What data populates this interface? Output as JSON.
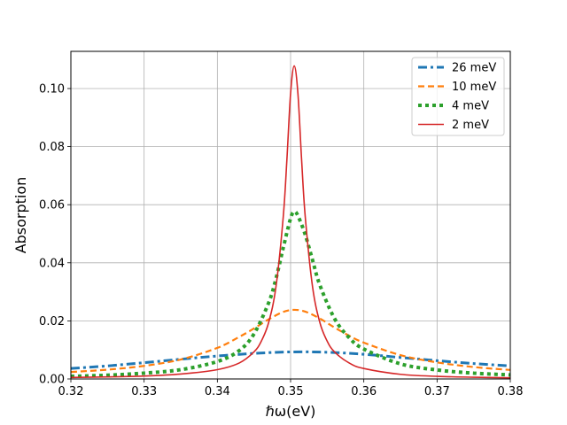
{
  "chart_data": {
    "type": "line",
    "xlabel": "ℏω(eV)",
    "ylabel": "Absorption",
    "xlim": [
      0.32,
      0.38
    ],
    "ylim": [
      0.0,
      0.1128
    ],
    "x_ticks": [
      "0.32",
      "0.33",
      "0.34",
      "0.35",
      "0.36",
      "0.37",
      "0.38"
    ],
    "y_ticks": [
      "0.00",
      "0.02",
      "0.04",
      "0.06",
      "0.08",
      "0.10"
    ],
    "grid": true,
    "legend_position": "top-right",
    "series": [
      {
        "name": "26 meV",
        "color": "#1f77b4",
        "style": "dash-dot",
        "x": [
          0.32,
          0.325,
          0.33,
          0.335,
          0.34,
          0.345,
          0.35,
          0.355,
          0.36,
          0.365,
          0.37,
          0.375,
          0.38
        ],
        "y": [
          0.0036,
          0.0045,
          0.0056,
          0.0068,
          0.0079,
          0.0088,
          0.0093,
          0.0092,
          0.0085,
          0.0074,
          0.0063,
          0.0053,
          0.0045
        ]
      },
      {
        "name": "10 meV",
        "color": "#ff7f0e",
        "style": "dashed",
        "x": [
          0.32,
          0.325,
          0.33,
          0.335,
          0.34,
          0.343,
          0.345,
          0.347,
          0.349,
          0.3505,
          0.352,
          0.354,
          0.356,
          0.358,
          0.36,
          0.365,
          0.37,
          0.375,
          0.38
        ],
        "y": [
          0.0024,
          0.0032,
          0.0045,
          0.0067,
          0.0107,
          0.0145,
          0.0174,
          0.0205,
          0.0231,
          0.0238,
          0.0232,
          0.0208,
          0.0177,
          0.0149,
          0.0125,
          0.0082,
          0.0057,
          0.0041,
          0.0031
        ]
      },
      {
        "name": "4 meV",
        "color": "#2ca02c",
        "style": "dotted",
        "x": [
          0.32,
          0.325,
          0.33,
          0.335,
          0.34,
          0.343,
          0.345,
          0.347,
          0.348,
          0.349,
          0.35,
          0.3505,
          0.351,
          0.352,
          0.353,
          0.354,
          0.356,
          0.358,
          0.36,
          0.365,
          0.37,
          0.375,
          0.38
        ],
        "y": [
          0.0009,
          0.0013,
          0.002,
          0.0032,
          0.006,
          0.0098,
          0.0155,
          0.0262,
          0.0345,
          0.0452,
          0.0553,
          0.0576,
          0.0562,
          0.0497,
          0.0409,
          0.0323,
          0.0208,
          0.0142,
          0.0103,
          0.0052,
          0.0031,
          0.002,
          0.0014
        ]
      },
      {
        "name": "2 meV",
        "color": "#d62728",
        "style": "solid",
        "x": [
          0.32,
          0.325,
          0.33,
          0.335,
          0.34,
          0.343,
          0.345,
          0.346,
          0.347,
          0.348,
          0.349,
          0.3495,
          0.35,
          0.3505,
          0.351,
          0.3515,
          0.352,
          0.353,
          0.354,
          0.355,
          0.356,
          0.358,
          0.36,
          0.365,
          0.37,
          0.375,
          0.38
        ],
        "y": [
          0.0005,
          0.0007,
          0.001,
          0.0017,
          0.0032,
          0.0055,
          0.0093,
          0.013,
          0.0194,
          0.0317,
          0.0559,
          0.0757,
          0.0983,
          0.1078,
          0.0983,
          0.0757,
          0.0559,
          0.0317,
          0.0194,
          0.013,
          0.0093,
          0.0055,
          0.0036,
          0.0016,
          0.0009,
          0.0006,
          0.0004
        ]
      }
    ]
  }
}
